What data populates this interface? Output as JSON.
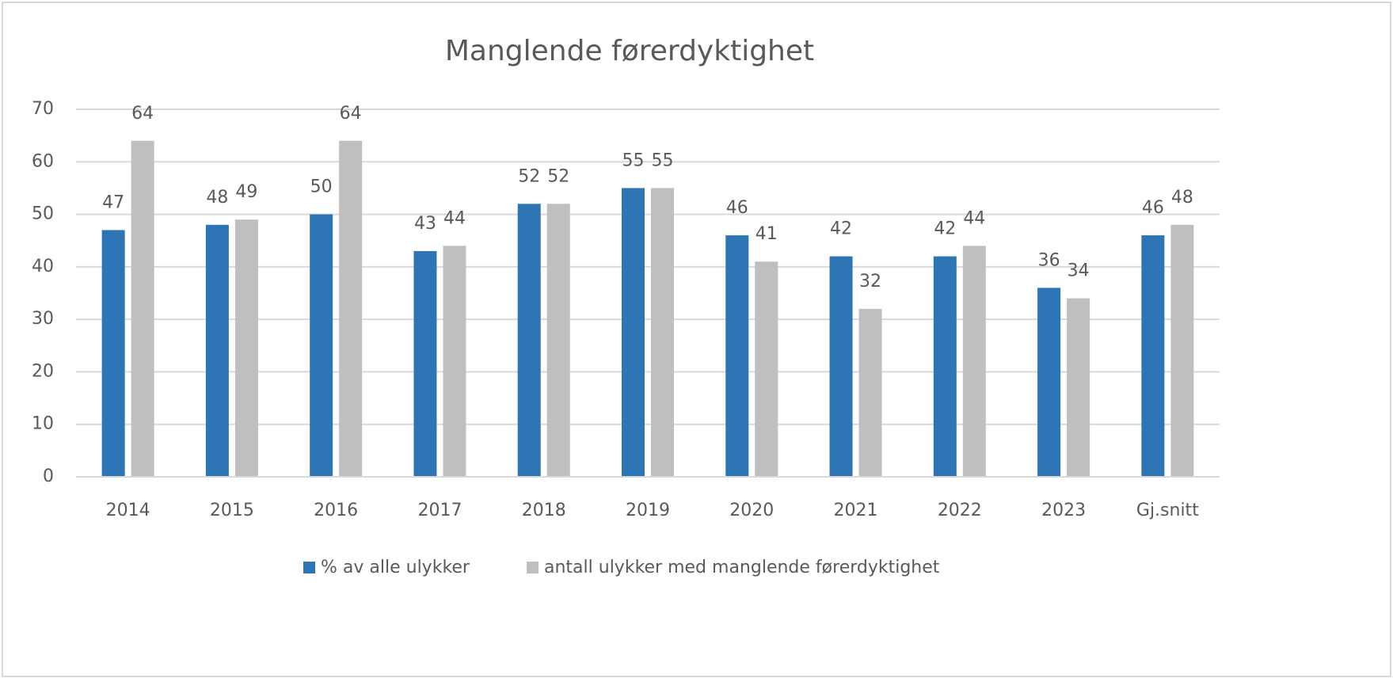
{
  "chart_data": {
    "type": "bar",
    "title": "Manglende førerdyktighet",
    "categories": [
      "2014",
      "2015",
      "2016",
      "2017",
      "2018",
      "2019",
      "2020",
      "2021",
      "2022",
      "2023",
      "Gj.snitt"
    ],
    "series": [
      {
        "name": "% av alle ulykker",
        "color": "#2e75b6",
        "values": [
          47,
          48,
          50,
          43,
          52,
          55,
          46,
          42,
          42,
          36,
          46
        ]
      },
      {
        "name": "antall ulykker med manglende førerdyktighet",
        "color": "#bfbfbf",
        "values": [
          64,
          49,
          64,
          44,
          52,
          55,
          41,
          32,
          44,
          34,
          48
        ]
      }
    ],
    "ylim": [
      0,
      70
    ],
    "yticks": [
      0,
      10,
      20,
      30,
      40,
      50,
      60,
      70
    ],
    "grid": true,
    "legend": "bottom"
  }
}
